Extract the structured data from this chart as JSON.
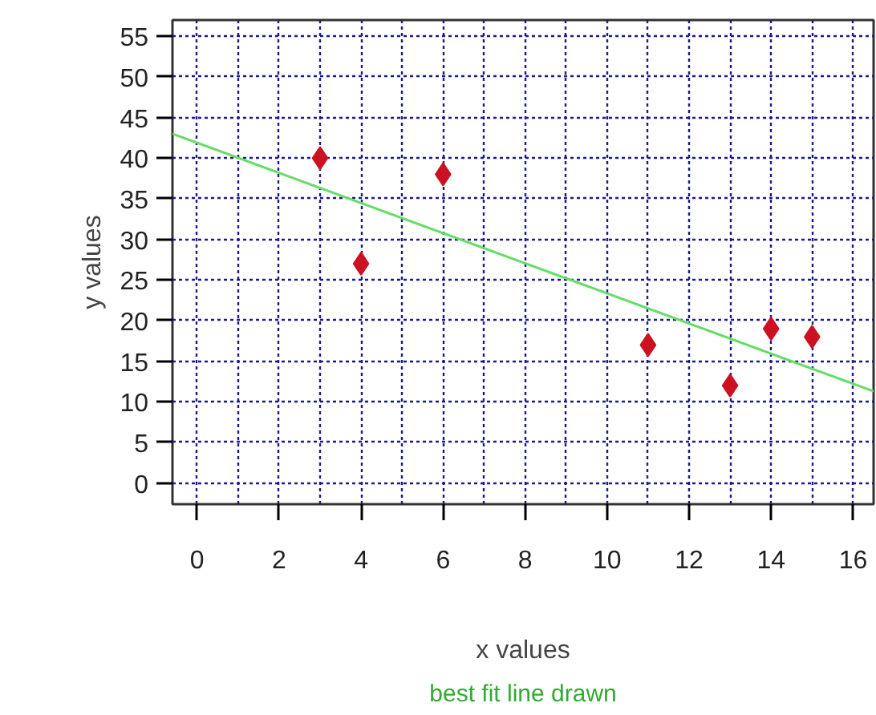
{
  "chart_data": {
    "type": "scatter",
    "xlabel": "x values",
    "ylabel": "y values",
    "annotations": [
      "best fit line drawn"
    ],
    "xlim": [
      -0.6,
      16.5
    ],
    "ylim": [
      -2.6,
      57
    ],
    "xticks": [
      0,
      {
        "value": 1,
        "label": null
      },
      2,
      {
        "value": 3,
        "label": null
      },
      4,
      {
        "value": 5,
        "label": null
      },
      6,
      {
        "value": 7,
        "label": null
      },
      8,
      {
        "value": 9,
        "label": null
      },
      10,
      {
        "value": 11,
        "label": null
      },
      12,
      {
        "value": 13,
        "label": null
      },
      14,
      {
        "value": 15,
        "label": null
      },
      16
    ],
    "yticks": [
      0,
      5,
      10,
      15,
      20,
      25,
      30,
      35,
      40,
      45,
      50,
      55
    ],
    "grid": true,
    "series": [
      {
        "marker": "diamond",
        "color": "#cc1122",
        "x": [
          3,
          4,
          6,
          11,
          13,
          14,
          15
        ],
        "values": [
          40,
          27,
          38,
          17,
          12,
          19,
          18
        ]
      },
      {
        "type": "line",
        "color": "#66dd66",
        "x": [
          -0.6,
          16.5
        ],
        "values": [
          43.0,
          11.3
        ]
      }
    ]
  }
}
